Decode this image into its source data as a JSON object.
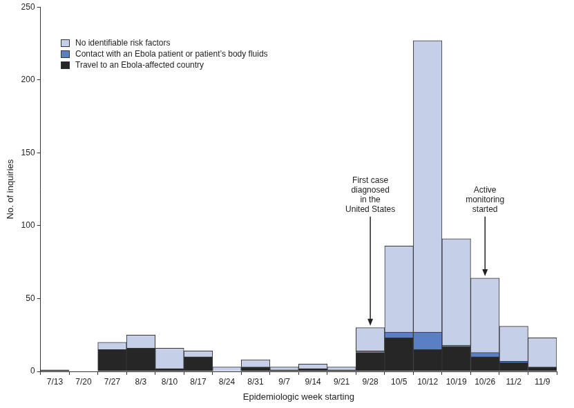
{
  "chart_data": {
    "type": "bar",
    "stacked": true,
    "grid": false,
    "legend": "top-left",
    "x_label": "Epidemiologic week starting",
    "y_label": "No. of inquiries",
    "categories": [
      "7/13",
      "7/20",
      "7/27",
      "8/3",
      "8/10",
      "8/17",
      "8/24",
      "8/31",
      "9/7",
      "9/14",
      "9/21",
      "9/28",
      "10/5",
      "10/12",
      "10/19",
      "10/26",
      "11/2",
      "11/9"
    ],
    "series": [
      {
        "name": "No identifiable risk factors",
        "color": "#c5d0e8",
        "values": [
          0,
          0,
          5,
          9,
          14,
          4,
          3,
          5,
          2,
          3,
          2,
          16,
          59,
          200,
          73,
          51,
          24,
          20
        ]
      },
      {
        "name": "Contact with an Ebola patient or patient’s body fluids",
        "color": "#5b7fc4",
        "values": [
          0,
          0,
          0,
          0,
          0,
          0,
          0,
          0,
          0,
          0,
          0,
          1,
          4,
          12,
          1,
          3,
          1,
          0
        ]
      },
      {
        "name": "Travel to an Ebola-affected country",
        "color": "#262626",
        "values": [
          1,
          0,
          15,
          16,
          2,
          10,
          0,
          3,
          1,
          2,
          1,
          13,
          23,
          15,
          17,
          10,
          6,
          3
        ]
      }
    ],
    "ylim": [
      0,
      250
    ],
    "yticks": [
      0,
      50,
      100,
      150,
      200,
      250
    ],
    "annotations": [
      {
        "text": [
          "First case",
          "diagnosed",
          "in the",
          "United States"
        ],
        "category": "9/28"
      },
      {
        "text": [
          "Active",
          "monitoring",
          "started"
        ],
        "category": "10/26"
      }
    ]
  }
}
